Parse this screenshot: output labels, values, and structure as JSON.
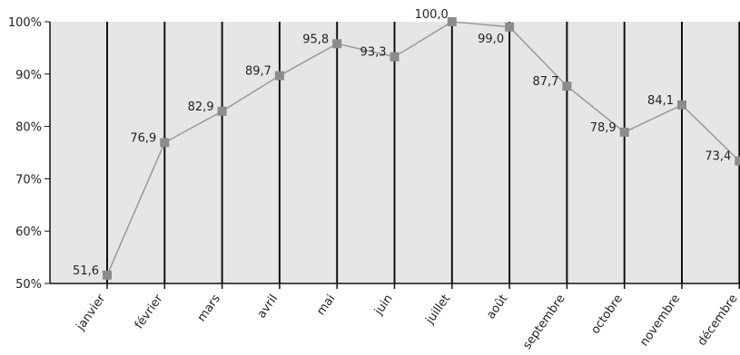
{
  "chart_data": {
    "type": "line",
    "categories": [
      "janvier",
      "février",
      "mars",
      "avril",
      "mai",
      "juin",
      "juillet",
      "août",
      "septembre",
      "octobre",
      "novembre",
      "décembre"
    ],
    "values": [
      51.6,
      76.9,
      82.9,
      89.7,
      95.8,
      93.3,
      100.0,
      99.0,
      87.7,
      78.9,
      84.1,
      73.4
    ],
    "data_labels": [
      "51,6",
      "76,9",
      "82,9",
      "89,7",
      "95,8",
      "93,3",
      "100,0",
      "99,0",
      "87,7",
      "78,9",
      "84,1",
      "73,4"
    ],
    "y_ticks": [
      50,
      60,
      70,
      80,
      90,
      100
    ],
    "y_tick_labels": [
      "50%",
      "60%",
      "70%",
      "80%",
      "90%",
      "100%"
    ],
    "ylim": [
      50,
      100
    ],
    "grid": true,
    "colors": {
      "plot_background": "#e6e6e6",
      "line": "#999999",
      "marker": "#8c8c8c",
      "gridline": "#111111"
    }
  }
}
